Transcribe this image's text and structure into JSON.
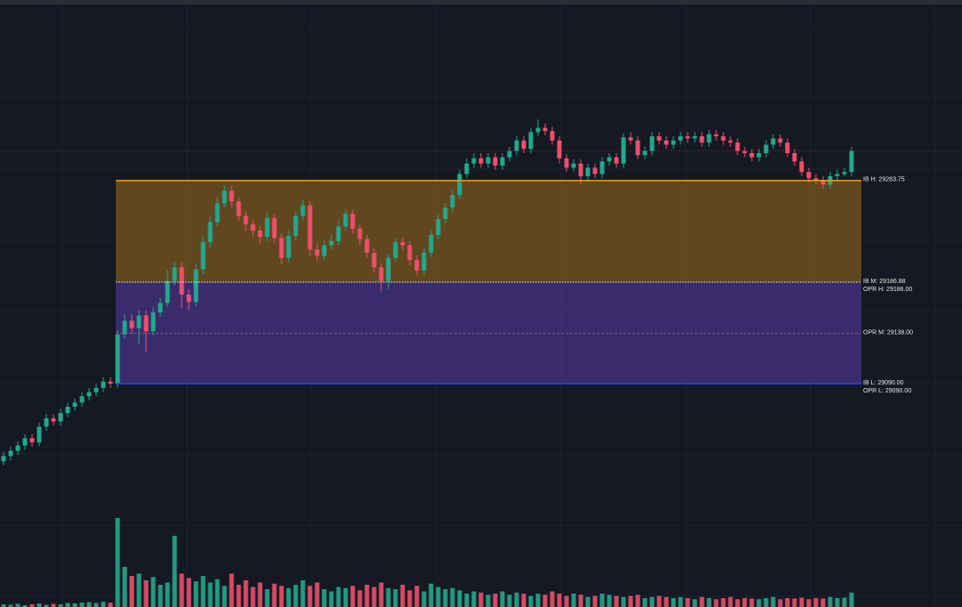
{
  "chart_data": {
    "type": "candlestick",
    "ylim": [
      28877,
      29456
    ],
    "volume_ylim": [
      0,
      1000
    ],
    "up_color": "#22a88c",
    "down_color": "#ee4f6c",
    "grid": true,
    "open": [
      29016,
      29021,
      29026,
      29031,
      29038,
      29034,
      29049,
      29057,
      29054,
      29062,
      29068,
      29072,
      29078,
      29082,
      29086,
      29092,
      29090,
      29137,
      29150,
      29143,
      29155,
      29140,
      29158,
      29167,
      29188,
      29201,
      29175,
      29168,
      29199,
      29225,
      29244,
      29262,
      29274,
      29264,
      29250,
      29242,
      29236,
      29230,
      29248,
      29229,
      29210,
      29231,
      29250,
      29260,
      29218,
      29212,
      29222,
      29226,
      29240,
      29252,
      29238,
      29228,
      29215,
      29201,
      29188,
      29210,
      29225,
      29222,
      29208,
      29198,
      29215,
      29232,
      29247,
      29258,
      29270,
      29290,
      29300,
      29305,
      29300,
      29306,
      29298,
      29306,
      29312,
      29322,
      29314,
      29330,
      29334,
      29331,
      29322,
      29305,
      29296,
      29300,
      29288,
      29296,
      29290,
      29302,
      29306,
      29300,
      29325,
      29322,
      29308,
      29312,
      29326,
      29322,
      29318,
      29322,
      29326,
      29324,
      29326,
      29320,
      29328,
      29326,
      29322,
      29320,
      29312,
      29310,
      29306,
      29310,
      29318,
      29324,
      29320,
      29310,
      29302,
      29292,
      29286,
      29284,
      29280,
      29288,
      29290,
      29292
    ],
    "high": [
      29025,
      29030,
      29035,
      29042,
      29042,
      29053,
      29061,
      29061,
      29066,
      29072,
      29076,
      29082,
      29086,
      29090,
      29096,
      29096,
      29141,
      29156,
      29156,
      29160,
      29160,
      29163,
      29172,
      29198,
      29206,
      29206,
      29180,
      29204,
      29230,
      29250,
      29268,
      29279,
      29279,
      29268,
      29255,
      29246,
      29240,
      29253,
      29252,
      29233,
      29236,
      29254,
      29265,
      29264,
      29224,
      29226,
      29232,
      29245,
      29256,
      29256,
      29242,
      29232,
      29219,
      29205,
      29214,
      29229,
      29229,
      29226,
      29212,
      29219,
      29236,
      29251,
      29262,
      29274,
      29294,
      29305,
      29310,
      29310,
      29310,
      29310,
      29310,
      29316,
      29326,
      29326,
      29334,
      29342,
      29338,
      29335,
      29326,
      29309,
      29304,
      29304,
      29300,
      29300,
      29306,
      29310,
      29310,
      29329,
      29330,
      29326,
      29316,
      29330,
      29330,
      29326,
      29326,
      29330,
      29330,
      29330,
      29330,
      29332,
      29332,
      29330,
      29326,
      29324,
      29316,
      29314,
      29314,
      29322,
      29328,
      29328,
      29324,
      29314,
      29306,
      29296,
      29290,
      29288,
      29292,
      29294,
      29296,
      29316
    ],
    "low": [
      29012,
      29017,
      29022,
      29027,
      29030,
      29030,
      29045,
      29050,
      29050,
      29058,
      29064,
      29068,
      29074,
      29078,
      29082,
      29086,
      29086,
      29133,
      29138,
      29128,
      29120,
      29136,
      29154,
      29163,
      29184,
      29162,
      29160,
      29164,
      29195,
      29220,
      29240,
      29258,
      29258,
      29245,
      29236,
      29230,
      29224,
      29226,
      29224,
      29204,
      29206,
      29227,
      29246,
      29212,
      29206,
      29208,
      29218,
      29222,
      29236,
      29233,
      29222,
      29210,
      29196,
      29178,
      29180,
      29206,
      29217,
      29203,
      29193,
      29194,
      29211,
      29228,
      29243,
      29254,
      29266,
      29286,
      29296,
      29296,
      29296,
      29294,
      29294,
      29302,
      29308,
      29310,
      29310,
      29326,
      29327,
      29318,
      29300,
      29292,
      29292,
      29280,
      29284,
      29286,
      29286,
      29298,
      29296,
      29296,
      29318,
      29304,
      29304,
      29308,
      29318,
      29314,
      29314,
      29318,
      29320,
      29320,
      29316,
      29316,
      29322,
      29318,
      29316,
      29308,
      29306,
      29302,
      29302,
      29306,
      29314,
      29316,
      29306,
      29298,
      29288,
      29282,
      29280,
      29276,
      29276,
      29284,
      29288,
      29288
    ],
    "close": [
      29021,
      29026,
      29031,
      29038,
      29034,
      29049,
      29057,
      29054,
      29062,
      29068,
      29072,
      29078,
      29082,
      29086,
      29092,
      29090,
      29137,
      29150,
      29143,
      29155,
      29140,
      29158,
      29167,
      29188,
      29201,
      29175,
      29168,
      29199,
      29225,
      29244,
      29262,
      29274,
      29264,
      29250,
      29242,
      29236,
      29230,
      29248,
      29229,
      29210,
      29231,
      29250,
      29260,
      29218,
      29212,
      29222,
      29226,
      29240,
      29252,
      29238,
      29228,
      29215,
      29201,
      29188,
      29210,
      29225,
      29222,
      29208,
      29198,
      29215,
      29232,
      29247,
      29258,
      29270,
      29290,
      29300,
      29305,
      29300,
      29306,
      29298,
      29306,
      29312,
      29322,
      29314,
      29330,
      29334,
      29331,
      29322,
      29305,
      29296,
      29300,
      29288,
      29296,
      29290,
      29302,
      29306,
      29300,
      29325,
      29322,
      29308,
      29312,
      29326,
      29322,
      29318,
      29322,
      29326,
      29324,
      29326,
      29320,
      29328,
      29326,
      29322,
      29320,
      29312,
      29310,
      29306,
      29310,
      29318,
      29324,
      29320,
      29310,
      29302,
      29292,
      29286,
      29284,
      29280,
      29288,
      29290,
      29292,
      29312
    ],
    "volume": [
      12,
      10,
      14,
      8,
      12,
      16,
      10,
      14,
      12,
      18,
      16,
      20,
      22,
      18,
      24,
      20,
      400,
      180,
      140,
      150,
      120,
      135,
      100,
      110,
      320,
      150,
      130,
      115,
      140,
      110,
      125,
      95,
      150,
      100,
      120,
      90,
      110,
      80,
      105,
      95,
      85,
      100,
      120,
      95,
      110,
      80,
      70,
      90,
      85,
      95,
      75,
      100,
      90,
      110,
      85,
      80,
      100,
      75,
      95,
      70,
      105,
      90,
      80,
      85,
      75,
      60,
      70,
      65,
      55,
      60,
      70,
      55,
      65,
      60,
      50,
      60,
      55,
      70,
      60,
      50,
      60,
      55,
      45,
      50,
      60,
      55,
      50,
      45,
      50,
      55,
      40,
      45,
      50,
      45,
      40,
      45,
      40,
      35,
      45,
      40,
      35,
      40,
      45,
      35,
      40,
      38,
      35,
      40,
      45,
      35,
      40,
      38,
      42,
      35,
      40,
      38,
      45,
      40,
      42,
      65
    ],
    "levels": [
      {
        "label": "IB H: 29283.75",
        "value": 29283.75,
        "color": "#f0a020",
        "style": "solid",
        "fill": "rgba(160,110,30,0.55)"
      },
      {
        "label": "IB M: 29186.88",
        "value": 29186.88,
        "color": "#f2f2f2",
        "style": "dotted",
        "fill": "rgba(90,60,170,0.55)"
      },
      {
        "label": "OPR H: 29186.00",
        "value": 29186.0,
        "color": "#d03a5a",
        "style": "dashed"
      },
      {
        "label": "OPR M: 29138.00",
        "value": 29138.0,
        "color": "#d03a5a",
        "style": "dashed"
      },
      {
        "label": "IB L: 29090.00",
        "value": 29090.0,
        "color": "#3040e0",
        "style": "solid"
      },
      {
        "label": "OPR L: 29090.00",
        "value": 29090.0,
        "color": "#d03a5a",
        "style": "dashed"
      }
    ]
  }
}
